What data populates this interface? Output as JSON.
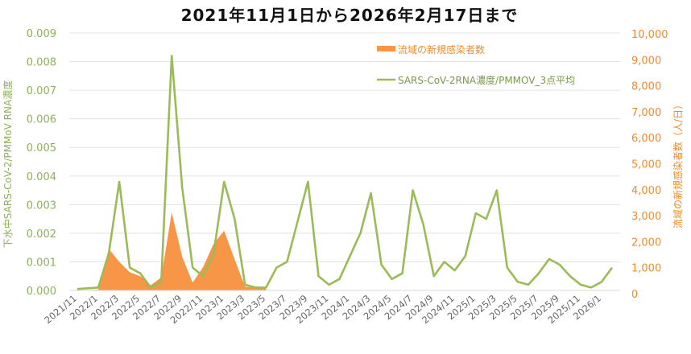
{
  "chart_data": {
    "type": "line+area",
    "title": "2021年11月1日から2026年2月17日まで",
    "x_tick_labels": [
      "2021/11",
      "2022/1",
      "2022/3",
      "2022/5",
      "2022/7",
      "2022/9",
      "2022/11",
      "2023/1",
      "2023/3",
      "2023/5",
      "2023/7",
      "2023/9",
      "2023/11",
      "2024/1",
      "2024/3",
      "2024/5",
      "2024/7",
      "2024/9",
      "2024/11",
      "2025/1",
      "2025/3",
      "2025/5",
      "2025/7",
      "2025/9",
      "2025/11",
      "2026/1"
    ],
    "y_left": {
      "label": "下水中SARS-CoV-2/PMMoV RNA濃度",
      "ticks": [
        "0.000",
        "0.001",
        "0.002",
        "0.003",
        "0.004",
        "0.005",
        "0.006",
        "0.007",
        "0.008",
        "0.009"
      ],
      "range": [
        0,
        0.009
      ]
    },
    "y_right": {
      "label": "流域の新規感染者数（人/日）",
      "ticks": [
        "0",
        "1,000",
        "2,000",
        "3,000",
        "4,000",
        "5,000",
        "6,000",
        "7,000",
        "8,000",
        "9,000",
        "10,000"
      ],
      "range": [
        0,
        10000
      ]
    },
    "legend": [
      {
        "name": "流域の新規感染者数",
        "type": "area",
        "color": "#f79646"
      },
      {
        "name": "SARS-CoV-2RNA濃度/PMMOV_3点平均",
        "type": "line",
        "color": "#9bbb59"
      }
    ],
    "series": [
      {
        "name": "流域の新規感染者数",
        "axis": "right",
        "unit": "人/日",
        "x": [
          "2021/11",
          "2022/1",
          "2022/2",
          "2022/3",
          "2022/4",
          "2022/5",
          "2022/6",
          "2022/7",
          "2022/8",
          "2022/9",
          "2022/10",
          "2022/11",
          "2022/12",
          "2023/1",
          "2023/2",
          "2023/3",
          "2023/4",
          "2023/5"
        ],
        "values": [
          0,
          30,
          1600,
          1100,
          700,
          550,
          200,
          500,
          3000,
          1300,
          300,
          900,
          1800,
          2300,
          1200,
          150,
          100,
          100
        ]
      },
      {
        "name": "SARS-CoV-2RNA濃度/PMMOV_3点平均",
        "axis": "left",
        "x": [
          "2021/11",
          "2022/1",
          "2022/2",
          "2022/3",
          "2022/4",
          "2022/5",
          "2022/6",
          "2022/7",
          "2022/8",
          "2022/9",
          "2022/10",
          "2022/11",
          "2022/12",
          "2023/1",
          "2023/2",
          "2023/3",
          "2023/4",
          "2023/5",
          "2023/6",
          "2023/7",
          "2023/8",
          "2023/9",
          "2023/10",
          "2023/11",
          "2023/12",
          "2024/1",
          "2024/2",
          "2024/3",
          "2024/4",
          "2024/5",
          "2024/6",
          "2024/7",
          "2024/8",
          "2024/9",
          "2024/10",
          "2024/11",
          "2024/12",
          "2025/1",
          "2025/2",
          "2025/3",
          "2025/4",
          "2025/5",
          "2025/6",
          "2025/7",
          "2025/8",
          "2025/9",
          "2025/10",
          "2025/11",
          "2025/12",
          "2026/1",
          "2026/2"
        ],
        "values": [
          5e-05,
          0.0001,
          0.0013,
          0.0038,
          0.0008,
          0.0006,
          0.0001,
          0.0003,
          0.0082,
          0.0036,
          0.0008,
          0.0005,
          0.0013,
          0.0038,
          0.0025,
          0.0002,
          0.0001,
          0.0001,
          0.0008,
          0.001,
          0.0024,
          0.0038,
          0.0005,
          0.0002,
          0.0004,
          0.0012,
          0.002,
          0.0034,
          0.0009,
          0.0004,
          0.0006,
          0.0035,
          0.0023,
          0.0005,
          0.001,
          0.0007,
          0.0012,
          0.0027,
          0.0025,
          0.0035,
          0.0008,
          0.0003,
          0.0002,
          0.0006,
          0.0011,
          0.0009,
          0.0005,
          0.0002,
          0.0001,
          0.0003,
          0.0008
        ]
      }
    ],
    "grid": true
  }
}
